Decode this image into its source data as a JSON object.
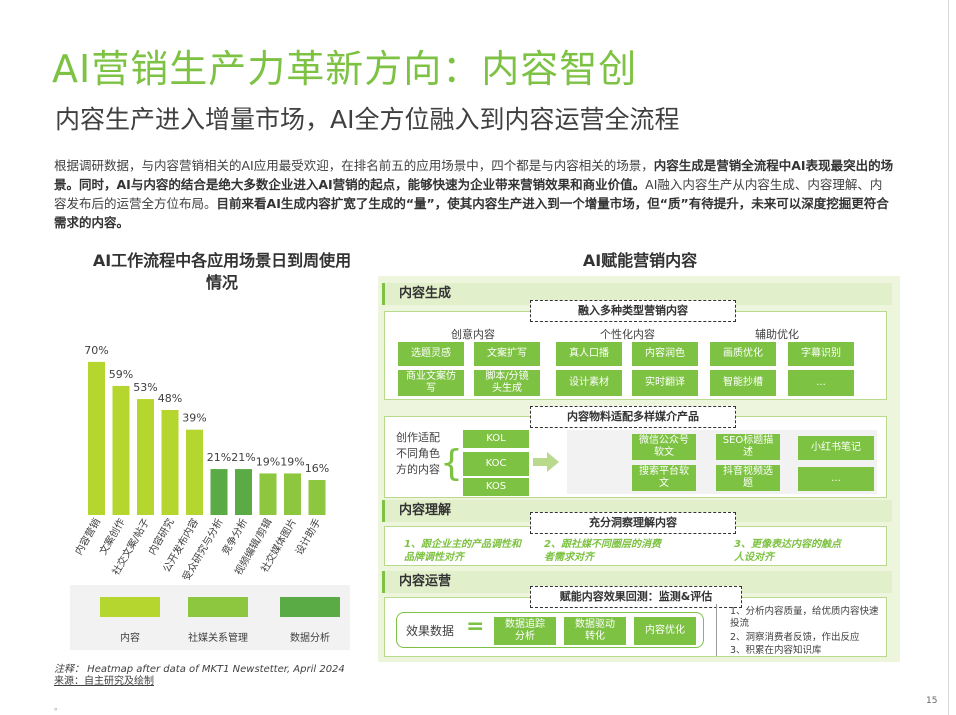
{
  "title": "AI营销生产力革新方向：内容智创",
  "subtitle": "内容生产进入增量市场，AI全方位融入到内容运营全流程",
  "intro": {
    "p1": "根据调研数据，与内容营销相关的AI应用最受欢迎，在排名前五的应用场景中，四个都是与内容相关的场景，",
    "p1_bold": "内容生成是营销全流程中AI表现最突出的场景。同时，AI与内容的结合是绝大多数企业进入AI营销的起点，能够快速为企业带来营销效果和商业价值。",
    "p2": "AI融入内容生产从内容生成、内容理解、内容发布后的运营全方位布局。",
    "p2_bold": "目前来看AI生成内容扩宽了生成的“量”，使其内容生产进入到一个增量市场，但“质”有待提升，未来可以深度挖掘更符合需求的内容。"
  },
  "chart_title": "AI工作流程中各应用场景日到周使用情况",
  "chart_data": {
    "type": "bar",
    "categories": [
      "内容营销",
      "文案创作",
      "社交文案/帖子",
      "内容研究",
      "公开发布内容",
      "受众研究与分析",
      "竞争分析",
      "视频编辑/剪辑",
      "社交媒体图片",
      "设计助手"
    ],
    "values": [
      70,
      59,
      53,
      48,
      39,
      21,
      21,
      19,
      19,
      16
    ],
    "value_labels": [
      "70%",
      "59%",
      "53%",
      "48%",
      "39%",
      "21%",
      "21%",
      "19%",
      "19%",
      "16%"
    ],
    "groups": [
      "内容",
      "内容",
      "内容",
      "内容",
      "内容",
      "数据分析",
      "数据分析",
      "社媒关系管理",
      "社媒关系管理",
      "社媒关系管理"
    ],
    "colors": {
      "内容": "#b5d52f",
      "社媒关系管理": "#8dc63f",
      "数据分析": "#5aaa46"
    },
    "legend": [
      "内容",
      "社媒关系管理",
      "数据分析"
    ],
    "ylim": [
      0,
      80
    ]
  },
  "diagram_title": "AI赋能营销内容",
  "diagram": {
    "sec1": {
      "head": "内容生成",
      "banner": "融入多种类型营销内容",
      "col1": "创意内容",
      "col2": "个性化内容",
      "col3": "辅助优化",
      "items": [
        "选题灵感",
        "文案扩写",
        "真人口播",
        "内容润色",
        "画质优化",
        "字幕识别",
        "商业文案仿写",
        "脚本/分镜头生成",
        "设计素材",
        "实时翻译",
        "智能抄槽",
        "..."
      ]
    },
    "sec2": {
      "banner": "内容物料适配多样媒介产品",
      "left": "创作适配不同角色方的内容",
      "roles": [
        "KOL",
        "KOC",
        "KOS"
      ],
      "media": [
        "微信公众号软文",
        "SEO标题描述",
        "小红书笔记",
        "搜索平台软文",
        "抖音视频选题",
        "..."
      ]
    },
    "sec3": {
      "head": "内容理解",
      "banner": "充分洞察理解内容",
      "notes": [
        "1、跟企业主的产品调性和品牌调性对齐",
        "2、跟社媒不同圈层的消费者需求对齐",
        "3、更像表达内容的触点人设对齐"
      ]
    },
    "sec4": {
      "head": "内容运营",
      "banner": "赋能内容效果回测：监测&评估",
      "label": "效果数据",
      "eq": "=",
      "buttons": [
        "数据追踪分析",
        "数据驱动转化",
        "内容优化"
      ],
      "list": [
        "1、分析内容质量，给优质内容快速投流",
        "2、洞察消费者反馈，作出反应",
        "3、积累在内容知识库"
      ]
    }
  },
  "notes": {
    "line1": "注释：  Heatmap after data of MKT1 Newstetter, April 2024",
    "line2": "来源：自主研究及绘制"
  },
  "page_number": "15",
  "dot": "。"
}
